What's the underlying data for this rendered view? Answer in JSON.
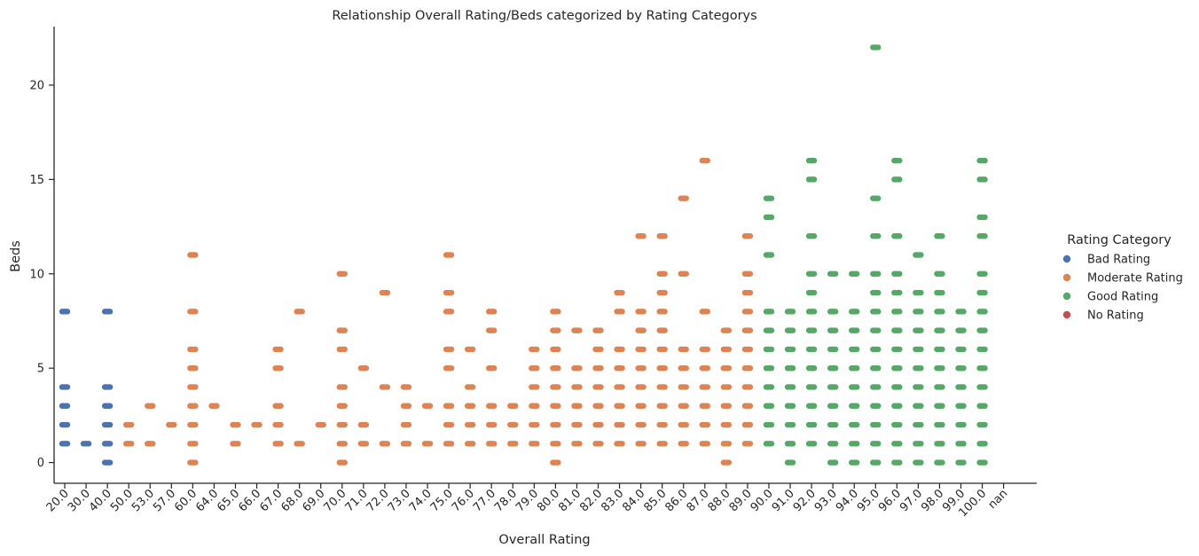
{
  "chart_data": {
    "type": "scatter",
    "subtype": "categorical strip plot",
    "title": "Relationship Overall Rating/Beds categorized by Rating Categorys",
    "xlabel": "Overall Rating",
    "ylabel": "Beds",
    "categories": [
      "20.0",
      "30.0",
      "40.0",
      "50.0",
      "53.0",
      "57.0",
      "60.0",
      "64.0",
      "65.0",
      "66.0",
      "67.0",
      "68.0",
      "69.0",
      "70.0",
      "71.0",
      "72.0",
      "73.0",
      "74.0",
      "75.0",
      "76.0",
      "77.0",
      "78.0",
      "79.0",
      "80.0",
      "81.0",
      "82.0",
      "83.0",
      "84.0",
      "85.0",
      "86.0",
      "87.0",
      "88.0",
      "89.0",
      "90.0",
      "91.0",
      "92.0",
      "93.0",
      "94.0",
      "95.0",
      "96.0",
      "97.0",
      "98.0",
      "99.0",
      "100.0",
      "nan"
    ],
    "ylim": [
      -1.1,
      23.1
    ],
    "yticks": [
      0,
      5,
      10,
      15,
      20
    ],
    "grid": false,
    "legend": {
      "title": "Rating Category",
      "placement": "right",
      "entries": [
        {
          "name": "Bad Rating",
          "color": "#4c72b0"
        },
        {
          "name": "Moderate Rating",
          "color": "#dd8452"
        },
        {
          "name": "Good Rating",
          "color": "#55a868"
        },
        {
          "name": "No Rating",
          "color": "#c44e52"
        }
      ]
    },
    "series": [
      {
        "name": "Bad Rating",
        "color": "#4c72b0",
        "points": [
          {
            "x": "20.0",
            "beds": [
              1,
              2,
              3,
              4,
              8
            ]
          },
          {
            "x": "30.0",
            "beds": [
              1
            ]
          },
          {
            "x": "40.0",
            "beds": [
              0,
              1,
              2,
              3,
              4,
              8
            ]
          }
        ]
      },
      {
        "name": "Moderate Rating",
        "color": "#dd8452",
        "points": [
          {
            "x": "50.0",
            "beds": [
              1,
              2
            ]
          },
          {
            "x": "53.0",
            "beds": [
              1,
              3
            ]
          },
          {
            "x": "57.0",
            "beds": [
              2
            ]
          },
          {
            "x": "60.0",
            "beds": [
              0,
              1,
              2,
              3,
              4,
              5,
              6,
              8,
              11
            ]
          },
          {
            "x": "64.0",
            "beds": [
              3
            ]
          },
          {
            "x": "65.0",
            "beds": [
              1,
              2
            ]
          },
          {
            "x": "66.0",
            "beds": [
              2
            ]
          },
          {
            "x": "67.0",
            "beds": [
              1,
              2,
              3,
              5,
              6
            ]
          },
          {
            "x": "68.0",
            "beds": [
              1,
              8
            ]
          },
          {
            "x": "69.0",
            "beds": [
              2
            ]
          },
          {
            "x": "70.0",
            "beds": [
              0,
              1,
              2,
              3,
              4,
              6,
              7,
              10
            ]
          },
          {
            "x": "71.0",
            "beds": [
              1,
              2,
              5
            ]
          },
          {
            "x": "72.0",
            "beds": [
              1,
              4,
              9
            ]
          },
          {
            "x": "73.0",
            "beds": [
              1,
              2,
              3,
              4
            ]
          },
          {
            "x": "74.0",
            "beds": [
              1,
              3
            ]
          },
          {
            "x": "75.0",
            "beds": [
              1,
              2,
              3,
              5,
              6,
              8,
              9,
              11
            ]
          },
          {
            "x": "76.0",
            "beds": [
              1,
              2,
              3,
              4,
              6
            ]
          },
          {
            "x": "77.0",
            "beds": [
              1,
              2,
              3,
              5,
              7,
              8
            ]
          },
          {
            "x": "78.0",
            "beds": [
              1,
              2,
              3
            ]
          },
          {
            "x": "79.0",
            "beds": [
              1,
              2,
              3,
              4,
              5,
              6
            ]
          },
          {
            "x": "80.0",
            "beds": [
              0,
              1,
              2,
              3,
              4,
              5,
              6,
              7,
              8
            ]
          },
          {
            "x": "81.0",
            "beds": [
              1,
              2,
              3,
              4,
              5,
              7
            ]
          },
          {
            "x": "82.0",
            "beds": [
              1,
              2,
              3,
              4,
              5,
              6,
              7
            ]
          },
          {
            "x": "83.0",
            "beds": [
              1,
              2,
              3,
              4,
              5,
              6,
              8,
              9
            ]
          },
          {
            "x": "84.0",
            "beds": [
              1,
              2,
              3,
              4,
              5,
              6,
              7,
              8,
              12
            ]
          },
          {
            "x": "85.0",
            "beds": [
              1,
              2,
              3,
              4,
              5,
              6,
              7,
              8,
              9,
              10,
              12
            ]
          },
          {
            "x": "86.0",
            "beds": [
              1,
              2,
              3,
              4,
              5,
              6,
              10,
              14
            ]
          },
          {
            "x": "87.0",
            "beds": [
              1,
              2,
              3,
              4,
              5,
              6,
              8,
              16
            ]
          },
          {
            "x": "88.0",
            "beds": [
              0,
              1,
              2,
              3,
              4,
              5,
              6,
              7
            ]
          },
          {
            "x": "89.0",
            "beds": [
              1,
              2,
              3,
              4,
              5,
              6,
              7,
              8,
              9,
              10,
              12
            ]
          }
        ]
      },
      {
        "name": "Good Rating",
        "color": "#55a868",
        "points": [
          {
            "x": "90.0",
            "beds": [
              1,
              2,
              3,
              4,
              5,
              6,
              7,
              8,
              11,
              13,
              14
            ]
          },
          {
            "x": "91.0",
            "beds": [
              0,
              1,
              2,
              3,
              4,
              5,
              6,
              7,
              8
            ]
          },
          {
            "x": "92.0",
            "beds": [
              1,
              2,
              3,
              4,
              5,
              6,
              7,
              8,
              9,
              10,
              12,
              15,
              16
            ]
          },
          {
            "x": "93.0",
            "beds": [
              0,
              1,
              2,
              3,
              4,
              5,
              6,
              7,
              8,
              10
            ]
          },
          {
            "x": "94.0",
            "beds": [
              0,
              1,
              2,
              3,
              4,
              5,
              6,
              7,
              8,
              10
            ]
          },
          {
            "x": "95.0",
            "beds": [
              0,
              1,
              2,
              3,
              4,
              5,
              6,
              7,
              8,
              9,
              10,
              12,
              14,
              22
            ]
          },
          {
            "x": "96.0",
            "beds": [
              0,
              1,
              2,
              3,
              4,
              5,
              6,
              7,
              8,
              9,
              10,
              12,
              15,
              16
            ]
          },
          {
            "x": "97.0",
            "beds": [
              0,
              1,
              2,
              3,
              4,
              5,
              6,
              7,
              8,
              9,
              11
            ]
          },
          {
            "x": "98.0",
            "beds": [
              0,
              1,
              2,
              3,
              4,
              5,
              6,
              7,
              8,
              9,
              10,
              12
            ]
          },
          {
            "x": "99.0",
            "beds": [
              0,
              1,
              2,
              3,
              4,
              5,
              6,
              7,
              8
            ]
          },
          {
            "x": "100.0",
            "beds": [
              0,
              1,
              2,
              3,
              4,
              5,
              6,
              7,
              8,
              9,
              10,
              12,
              13,
              15,
              16
            ]
          }
        ]
      },
      {
        "name": "No Rating",
        "color": "#c44e52",
        "points": []
      }
    ]
  }
}
